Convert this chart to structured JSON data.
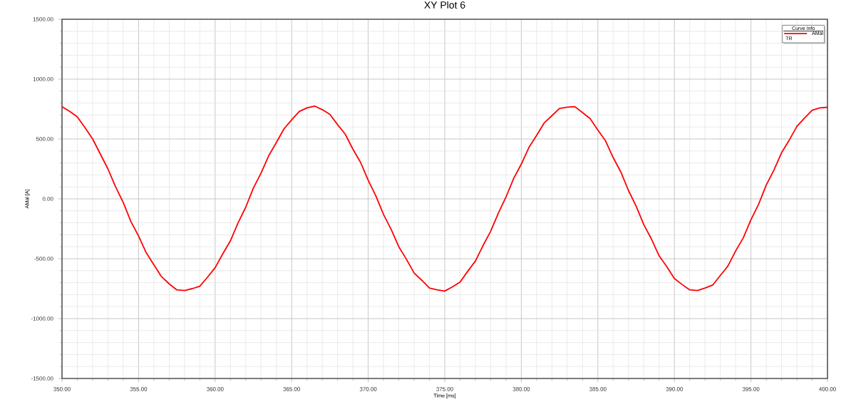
{
  "chart_data": {
    "type": "line",
    "title": "XY Plot 6",
    "xlabel": "Time [ms]",
    "ylabel": "AMal [A]",
    "legend_title": "Curve Info",
    "legend": "top right",
    "grid": true,
    "line_style": "solid",
    "annotations": [
      "TR"
    ],
    "xlim": [
      350,
      400
    ],
    "ylim": [
      -1500,
      1500
    ],
    "xticks": [
      {
        "value": 350,
        "label": "350.00"
      },
      {
        "value": 355,
        "label": "355.00"
      },
      {
        "value": 360,
        "label": "360.00"
      },
      {
        "value": 365,
        "label": "365.00"
      },
      {
        "value": 370,
        "label": "370.00"
      },
      {
        "value": 375,
        "label": "375.00"
      },
      {
        "value": 380,
        "label": "380.00"
      },
      {
        "value": 385,
        "label": "385.00"
      },
      {
        "value": 390,
        "label": "390.00"
      },
      {
        "value": 395,
        "label": "395.00"
      },
      {
        "value": 400,
        "label": "400.00"
      }
    ],
    "yticks": [
      {
        "value": -1500,
        "label": "-1500.00"
      },
      {
        "value": -1000,
        "label": "-1000.00"
      },
      {
        "value": -500,
        "label": "-500.00"
      },
      {
        "value": 0,
        "label": "0.00"
      },
      {
        "value": 500,
        "label": "500.00"
      },
      {
        "value": 1000,
        "label": "1000.00"
      },
      {
        "value": 1500,
        "label": "1500.00"
      }
    ],
    "x": [
      350,
      350.5,
      351,
      351.5,
      352,
      352.5,
      353,
      353.5,
      354,
      354.5,
      355,
      355.5,
      356,
      356.5,
      357,
      357.5,
      358,
      358.5,
      359,
      359.5,
      360,
      360.5,
      361,
      361.5,
      362,
      362.5,
      363,
      363.5,
      364,
      364.5,
      365,
      365.5,
      366,
      366.5,
      367,
      367.5,
      368,
      368.5,
      369,
      369.5,
      370,
      370.5,
      371,
      371.5,
      372,
      372.5,
      373,
      373.5,
      374,
      374.5,
      375,
      375.5,
      376,
      376.5,
      377,
      377.5,
      378,
      378.5,
      379,
      379.5,
      380,
      380.5,
      381,
      381.5,
      382,
      382.5,
      383,
      383.5,
      384,
      384.5,
      385,
      385.5,
      386,
      386.5,
      387,
      387.5,
      388,
      388.5,
      389,
      389.5,
      390,
      390.5,
      391,
      391.5,
      392,
      392.5,
      393,
      393.5,
      394,
      394.5,
      395,
      395.5,
      396,
      396.5,
      397,
      397.5,
      398,
      398.5,
      399,
      399.5,
      400
    ],
    "series": [
      {
        "name": "AMal",
        "color": "#ff0000",
        "values": [
          770,
          730,
          685,
          595,
          500,
          375,
          250,
          100,
          -30,
          -190,
          -310,
          -450,
          -550,
          -650,
          -710,
          -760,
          -765,
          -750,
          -730,
          -655,
          -575,
          -460,
          -350,
          -200,
          -70,
          90,
          215,
          360,
          470,
          585,
          660,
          730,
          760,
          775,
          745,
          705,
          620,
          540,
          415,
          305,
          155,
          25,
          -130,
          -255,
          -400,
          -505,
          -620,
          -680,
          -745,
          -760,
          -770,
          -735,
          -695,
          -605,
          -520,
          -390,
          -270,
          -120,
          15,
          170,
          290,
          430,
          530,
          635,
          695,
          755,
          765,
          770,
          720,
          670,
          575,
          485,
          345,
          225,
          70,
          -60,
          -215,
          -335,
          -475,
          -565,
          -665,
          -715,
          -760,
          -765,
          -745,
          -720,
          -640,
          -560,
          -435,
          -325,
          -175,
          -45,
          115,
          240,
          385,
          490,
          605,
          675,
          740,
          760,
          765
        ]
      }
    ]
  }
}
